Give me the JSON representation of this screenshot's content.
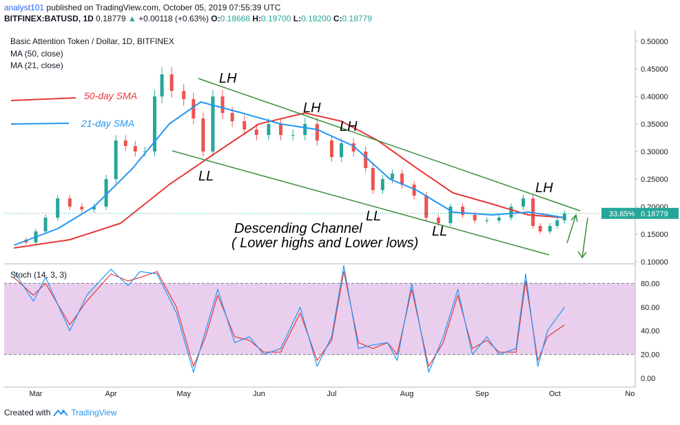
{
  "header": {
    "author": "analyst101",
    "published": "published on TradingView.com, October 05, 2019 07:55:39 UTC",
    "symbol": "BITFINEX:BATUSD, 1D",
    "last": "0.18779",
    "change_arrow": "▲",
    "change": "+0.00118 (+0.63%)",
    "o_label": "O:",
    "o_value": "0.18668",
    "h_label": "H:",
    "h_value": "0.19700",
    "l_label": "L:",
    "l_value": "0.18200",
    "c_label": "C:",
    "c_value": "0.18779"
  },
  "footer": {
    "created_with": "Created with",
    "brand": "TradingView"
  },
  "colors": {
    "up": "#26a69a",
    "down": "#ef5350",
    "ma50": "#e53935",
    "ma21": "#2196f3",
    "channel": "#388e3c",
    "stoch_k": "#2196f3",
    "stoch_d": "#e53935",
    "stoch_band": "#e1bee7",
    "price_tag": "#26a69a"
  },
  "chart_data": [
    {
      "type": "candlestick",
      "title": "Basic Attention Token / Dollar, 1D, BITFINEX",
      "indicator_labels": [
        "MA (50, close)",
        "MA (21, close)"
      ],
      "legend": [
        {
          "name": "50-day SMA",
          "color": "#e53935"
        },
        {
          "name": "21-day SMA",
          "color": "#2196f3"
        }
      ],
      "x_ticks": [
        "Mar",
        "Apr",
        "May",
        "Jun",
        "Jul",
        "Aug",
        "Sep",
        "Oct",
        "No"
      ],
      "y_ticks": [
        "0.50000",
        "0.45000",
        "0.40000",
        "0.35000",
        "0.30000",
        "0.25000",
        "0.20000",
        "0.15000",
        "0.10000"
      ],
      "ylim": [
        0.1,
        0.5
      ],
      "price_tag": {
        "percent": "33.85%",
        "value": "0.18779"
      },
      "series": [
        {
          "name": "close",
          "x": [
            "2019-02-20",
            "2019-02-25",
            "2019-03-01",
            "2019-03-05",
            "2019-03-10",
            "2019-03-15",
            "2019-03-20",
            "2019-03-25",
            "2019-03-30",
            "2019-04-03",
            "2019-04-07",
            "2019-04-11",
            "2019-04-15",
            "2019-04-19",
            "2019-04-22",
            "2019-04-26",
            "2019-05-01",
            "2019-05-05",
            "2019-05-09",
            "2019-05-13",
            "2019-05-17",
            "2019-05-21",
            "2019-05-26",
            "2019-05-31",
            "2019-06-05",
            "2019-06-10",
            "2019-06-15",
            "2019-06-20",
            "2019-06-25",
            "2019-07-01",
            "2019-07-05",
            "2019-07-10",
            "2019-07-15",
            "2019-07-18",
            "2019-07-22",
            "2019-07-26",
            "2019-07-30",
            "2019-08-04",
            "2019-08-09",
            "2019-08-14",
            "2019-08-19",
            "2019-08-24",
            "2019-08-29",
            "2019-09-03",
            "2019-09-08",
            "2019-09-13",
            "2019-09-18",
            "2019-09-22",
            "2019-09-25",
            "2019-09-29",
            "2019-10-02",
            "2019-10-05"
          ],
          "values": [
            0.14,
            0.135,
            0.155,
            0.18,
            0.215,
            0.2,
            0.195,
            0.2,
            0.25,
            0.32,
            0.31,
            0.3,
            0.3,
            0.4,
            0.44,
            0.41,
            0.395,
            0.36,
            0.3,
            0.4,
            0.37,
            0.355,
            0.34,
            0.33,
            0.35,
            0.33,
            0.33,
            0.35,
            0.32,
            0.29,
            0.315,
            0.3,
            0.27,
            0.23,
            0.25,
            0.26,
            0.24,
            0.22,
            0.18,
            0.17,
            0.2,
            0.185,
            0.175,
            0.175,
            0.18,
            0.2,
            0.215,
            0.165,
            0.155,
            0.165,
            0.175,
            0.18779
          ]
        },
        {
          "name": "50-day SMA",
          "x": [
            "2019-02-20",
            "2019-03-15",
            "2019-04-05",
            "2019-04-25",
            "2019-05-15",
            "2019-06-01",
            "2019-06-20",
            "2019-07-05",
            "2019-07-20",
            "2019-08-05",
            "2019-08-20",
            "2019-09-05",
            "2019-09-20",
            "2019-10-05"
          ],
          "values": [
            0.125,
            0.14,
            0.17,
            0.24,
            0.3,
            0.35,
            0.37,
            0.355,
            0.32,
            0.27,
            0.225,
            0.205,
            0.185,
            0.18
          ]
        },
        {
          "name": "21-day SMA",
          "x": [
            "2019-02-20",
            "2019-03-10",
            "2019-03-25",
            "2019-04-10",
            "2019-04-25",
            "2019-05-08",
            "2019-05-25",
            "2019-06-10",
            "2019-06-25",
            "2019-07-10",
            "2019-07-25",
            "2019-08-05",
            "2019-08-20",
            "2019-09-05",
            "2019-09-20",
            "2019-09-28",
            "2019-10-05"
          ],
          "values": [
            0.13,
            0.16,
            0.2,
            0.27,
            0.35,
            0.39,
            0.37,
            0.35,
            0.34,
            0.31,
            0.25,
            0.23,
            0.19,
            0.185,
            0.19,
            0.185,
            0.18
          ]
        }
      ],
      "annotations": [
        "LH",
        "LH",
        "LH",
        "LH",
        "LL",
        "LL",
        "LL",
        "Descending Channel",
        "( Lower highs and Lower lows)"
      ]
    },
    {
      "type": "line",
      "title": "Stoch (14, 3, 3)",
      "y_ticks": [
        "80.00",
        "60.00",
        "40.00",
        "20.00",
        "0.00"
      ],
      "ylim": [
        0,
        100
      ],
      "band": [
        20,
        80
      ],
      "series": [
        {
          "name": "%K",
          "x": [
            "2019-02-20",
            "2019-02-28",
            "2019-03-05",
            "2019-03-15",
            "2019-03-22",
            "2019-04-01",
            "2019-04-08",
            "2019-04-13",
            "2019-04-20",
            "2019-04-28",
            "2019-05-05",
            "2019-05-10",
            "2019-05-15",
            "2019-05-22",
            "2019-05-28",
            "2019-06-03",
            "2019-06-10",
            "2019-06-18",
            "2019-06-25",
            "2019-07-01",
            "2019-07-06",
            "2019-07-12",
            "2019-07-18",
            "2019-07-24",
            "2019-07-28",
            "2019-08-03",
            "2019-08-10",
            "2019-08-16",
            "2019-08-22",
            "2019-08-28",
            "2019-09-03",
            "2019-09-08",
            "2019-09-15",
            "2019-09-19",
            "2019-09-24",
            "2019-09-28",
            "2019-10-05"
          ],
          "values": [
            90,
            65,
            85,
            40,
            70,
            92,
            78,
            90,
            88,
            55,
            5,
            40,
            75,
            30,
            35,
            20,
            25,
            60,
            10,
            35,
            95,
            25,
            28,
            30,
            15,
            80,
            5,
            35,
            75,
            20,
            35,
            20,
            25,
            88,
            10,
            40,
            60
          ]
        },
        {
          "name": "%D",
          "x": [
            "2019-02-20",
            "2019-02-28",
            "2019-03-05",
            "2019-03-15",
            "2019-03-22",
            "2019-04-01",
            "2019-04-08",
            "2019-04-13",
            "2019-04-20",
            "2019-04-28",
            "2019-05-05",
            "2019-05-10",
            "2019-05-15",
            "2019-05-22",
            "2019-05-28",
            "2019-06-03",
            "2019-06-10",
            "2019-06-18",
            "2019-06-25",
            "2019-07-01",
            "2019-07-06",
            "2019-07-12",
            "2019-07-18",
            "2019-07-24",
            "2019-07-28",
            "2019-08-03",
            "2019-08-10",
            "2019-08-16",
            "2019-08-22",
            "2019-08-28",
            "2019-09-03",
            "2019-09-08",
            "2019-09-15",
            "2019-09-19",
            "2019-09-24",
            "2019-09-28",
            "2019-10-05"
          ],
          "values": [
            85,
            70,
            80,
            45,
            65,
            88,
            82,
            85,
            90,
            60,
            10,
            35,
            70,
            35,
            32,
            22,
            22,
            55,
            15,
            32,
            90,
            30,
            25,
            30,
            20,
            75,
            10,
            30,
            70,
            25,
            32,
            22,
            22,
            82,
            15,
            35,
            45
          ]
        }
      ]
    }
  ]
}
